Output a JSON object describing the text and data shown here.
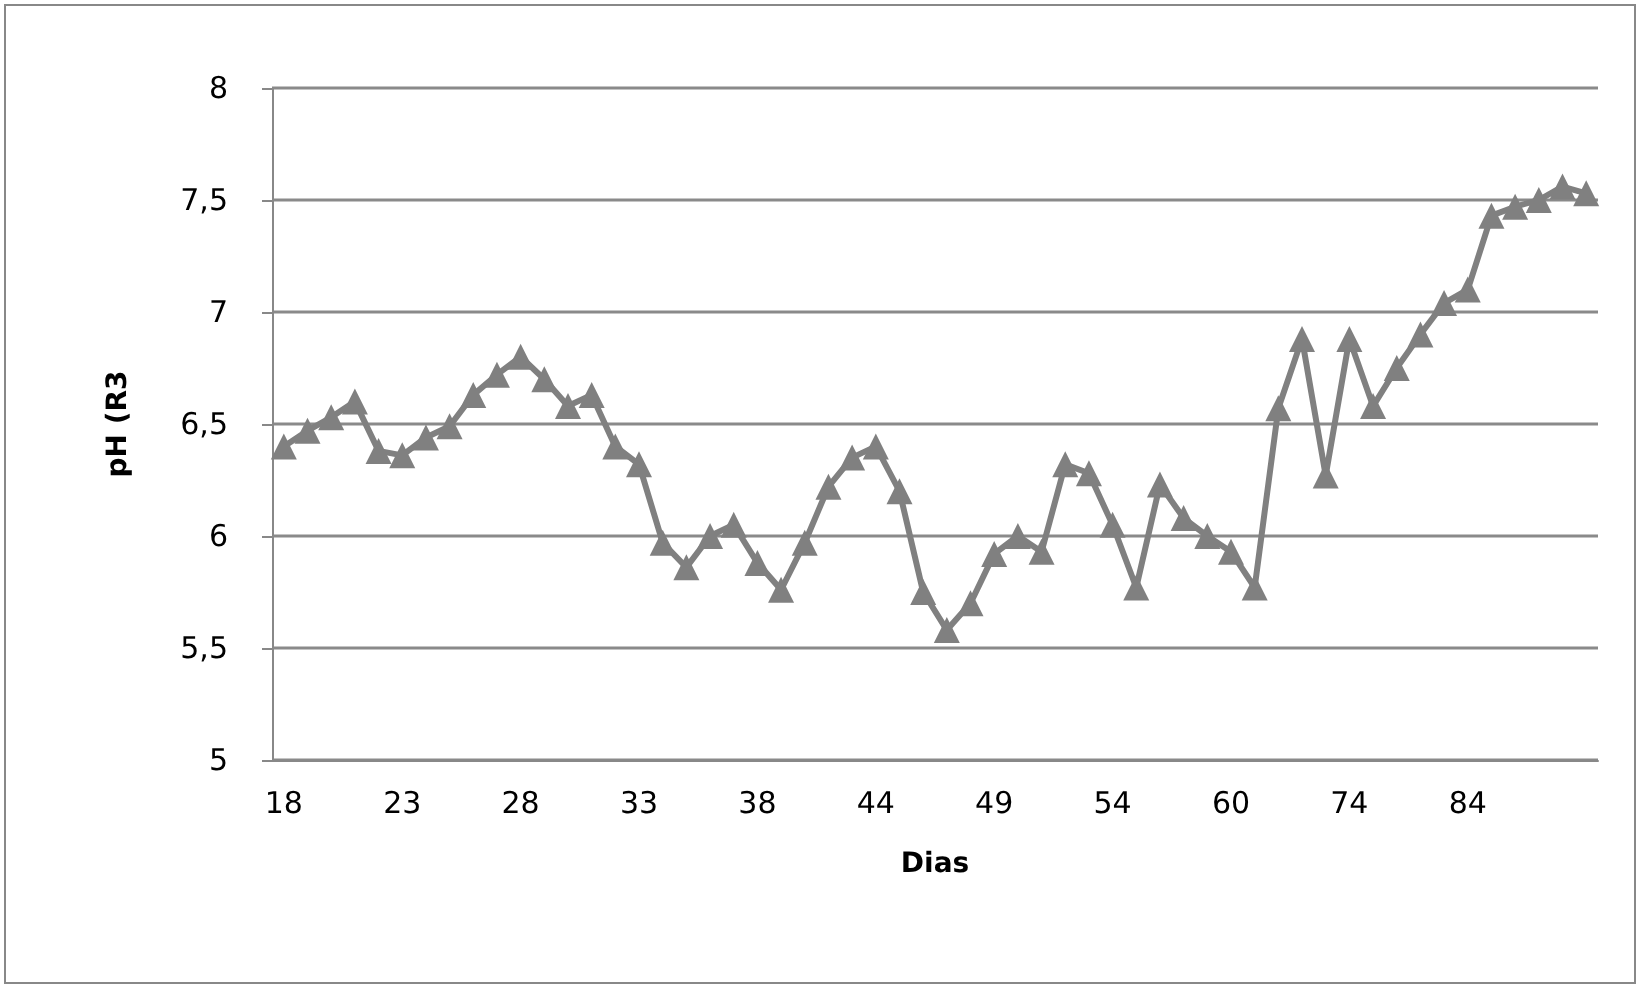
{
  "chart_data": {
    "type": "line",
    "xlabel": "Dias",
    "ylabel": "pH (R3",
    "categories": [
      "18",
      null,
      null,
      null,
      null,
      "23",
      null,
      null,
      null,
      null,
      "28",
      null,
      null,
      null,
      null,
      "33",
      null,
      null,
      null,
      null,
      "38",
      null,
      null,
      null,
      null,
      "44",
      null,
      null,
      null,
      null,
      "49",
      null,
      null,
      null,
      null,
      "54",
      null,
      null,
      null,
      null,
      "60",
      null,
      null,
      null,
      null,
      "74",
      null,
      null,
      null,
      null,
      "84",
      null,
      null,
      null,
      null,
      null
    ],
    "series": [
      {
        "color": "#808080",
        "values": [
          6.4,
          6.47,
          6.53,
          6.6,
          6.38,
          6.36,
          6.44,
          6.49,
          6.63,
          6.72,
          6.8,
          6.7,
          6.58,
          6.63,
          6.4,
          6.32,
          5.97,
          5.86,
          6.0,
          6.05,
          5.88,
          5.76,
          5.97,
          6.22,
          6.35,
          6.4,
          6.2,
          5.75,
          5.58,
          5.7,
          5.92,
          6.0,
          5.93,
          6.32,
          6.28,
          6.05,
          5.77,
          6.23,
          6.08,
          6.0,
          5.93,
          5.77,
          6.57,
          6.88,
          6.27,
          6.88,
          6.58,
          6.75,
          6.9,
          7.04,
          7.1,
          7.43,
          7.47,
          7.5,
          7.56,
          7.53
        ]
      }
    ],
    "ylim": [
      5,
      8
    ],
    "yticks": [
      5,
      {
        "value": 5.5,
        "label": "5,5"
      },
      6,
      {
        "value": 6.5,
        "label": "6,5"
      },
      7,
      {
        "value": 7.5,
        "label": "7,5"
      },
      8
    ],
    "grid": "y",
    "marker": "triangle",
    "line_style": "solid"
  }
}
